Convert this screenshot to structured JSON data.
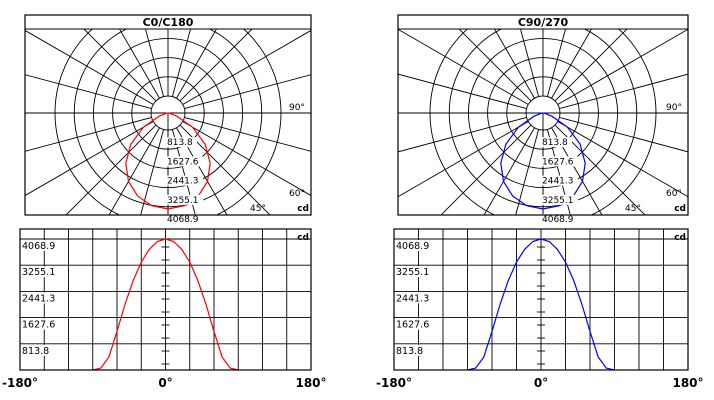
{
  "chart_data": [
    {
      "type": "polar",
      "title": "C0/C180",
      "unit": "cd",
      "radial_ticks": [
        "813.8",
        "1627.6",
        "2441.3",
        "3255.1",
        "4068.9"
      ],
      "angle_labels": [
        "90°",
        "60°",
        "45°"
      ],
      "max": 4068.9,
      "series": [
        {
          "color": "#ff0000",
          "angles": [
            0,
            10,
            20,
            30,
            40,
            50,
            60,
            70,
            80,
            90
          ],
          "values": [
            4068.9,
            3990,
            3750,
            3350,
            2780,
            2050,
            1200,
            400,
            60,
            0
          ]
        }
      ]
    },
    {
      "type": "line",
      "unit": "cd",
      "yticks": [
        "4068.9",
        "3255.1",
        "2441.3",
        "1627.6",
        "813.8"
      ],
      "xticks": [
        "-180°",
        "0°",
        "180°"
      ],
      "xlim": [
        -180,
        180
      ],
      "ylim": [
        0,
        4068.9
      ],
      "series": [
        {
          "color": "#ff0000",
          "x": [
            -90,
            -80,
            -70,
            -60,
            -50,
            -40,
            -30,
            -20,
            -10,
            0,
            10,
            20,
            30,
            40,
            50,
            60,
            70,
            80,
            90
          ],
          "y": [
            0,
            60,
            400,
            1200,
            2050,
            2780,
            3350,
            3750,
            3990,
            4068.9,
            3990,
            3750,
            3350,
            2780,
            2050,
            1200,
            400,
            60,
            0
          ]
        }
      ]
    },
    {
      "type": "polar",
      "title": "C90/270",
      "unit": "cd",
      "radial_ticks": [
        "813.8",
        "1627.6",
        "2441.3",
        "3255.1",
        "4068.9"
      ],
      "angle_labels": [
        "90°",
        "60°",
        "45°"
      ],
      "max": 4068.9,
      "series": [
        {
          "color": "#0000ff",
          "angles": [
            0,
            10,
            20,
            30,
            40,
            50,
            60,
            70,
            80,
            90
          ],
          "values": [
            4068.9,
            3990,
            3750,
            3350,
            2780,
            2050,
            1200,
            400,
            60,
            0
          ]
        }
      ]
    },
    {
      "type": "line",
      "unit": "cd",
      "yticks": [
        "4068.9",
        "3255.1",
        "2441.3",
        "1627.6",
        "813.8"
      ],
      "xticks": [
        "-180°",
        "0°",
        "180°"
      ],
      "xlim": [
        -180,
        180
      ],
      "ylim": [
        0,
        4068.9
      ],
      "series": [
        {
          "color": "#0000ff",
          "x": [
            -90,
            -80,
            -70,
            -60,
            -50,
            -40,
            -30,
            -20,
            -10,
            0,
            10,
            20,
            30,
            40,
            50,
            60,
            70,
            80,
            90
          ],
          "y": [
            0,
            60,
            400,
            1200,
            2050,
            2780,
            3350,
            3750,
            3990,
            4068.9,
            3990,
            3750,
            3350,
            2780,
            2050,
            1200,
            400,
            60,
            0
          ]
        }
      ]
    }
  ]
}
